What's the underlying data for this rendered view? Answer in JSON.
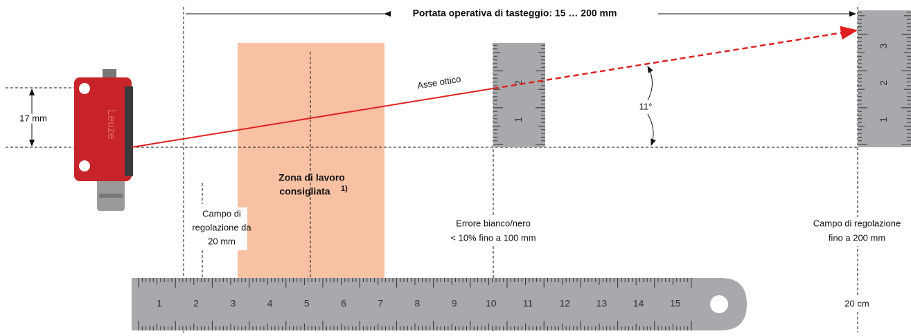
{
  "header": {
    "title": "Portata operativa di tasteggio: 15 … 200 mm"
  },
  "dimension": {
    "height": "17 mm"
  },
  "optical_axis": {
    "label": "Asse ottico",
    "angle": "11°"
  },
  "zone": {
    "lines": [
      "Zona di lavoro",
      "consigliata"
    ],
    "note": "1)"
  },
  "labels": {
    "adjust_min": [
      "Campo di",
      "regolazione da",
      "20 mm"
    ],
    "error": [
      "Errore bianco/nero",
      "< 10% fino a 100 mm"
    ],
    "adjust_max": [
      "Campo di regolazione",
      "fino a 200 mm"
    ],
    "distance": "20 cm"
  },
  "ruler": {
    "labels": [
      "1",
      "2",
      "3",
      "4",
      "5",
      "6",
      "7",
      "8",
      "9",
      "10",
      "11",
      "12",
      "13",
      "14",
      "15"
    ]
  },
  "small_ruler": {
    "labels": [
      "1",
      "2",
      "3"
    ]
  }
}
